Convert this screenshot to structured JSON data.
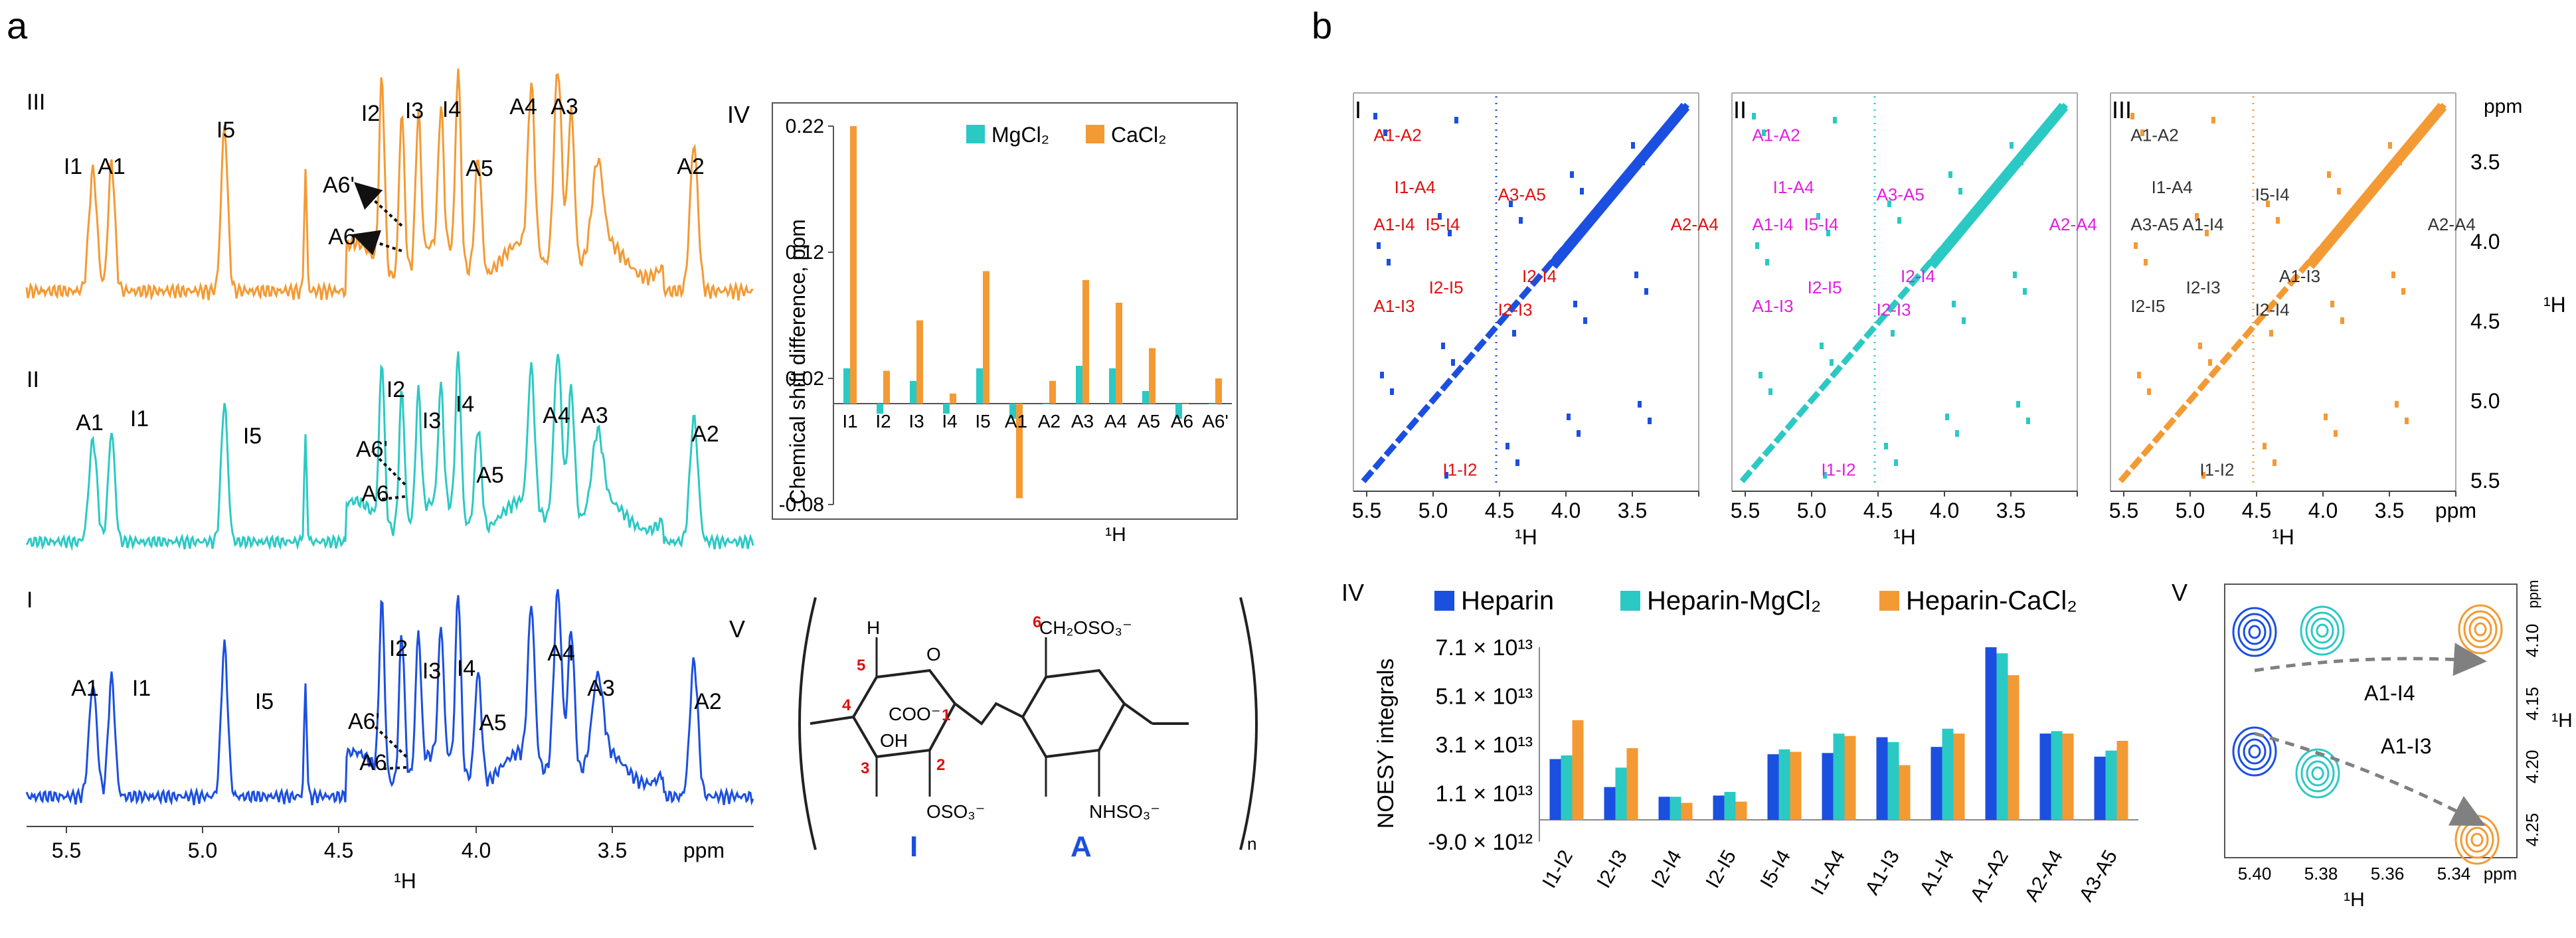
{
  "colors": {
    "orange": "#F39A34",
    "cyan": "#2BC9C4",
    "blue": "#1B4FE0",
    "magenta": "#E020E0",
    "red": "#E01010",
    "dark": "#333333"
  },
  "panel_a": {
    "label": "a",
    "spectra_labels": [
      "III",
      "II",
      "I"
    ],
    "ppm_ticks": [
      "5.5",
      "5.0",
      "4.5",
      "4.0",
      "3.5",
      "ppm"
    ],
    "axis_label": "¹H",
    "peaks": {
      "III": [
        "I1",
        "A1",
        "I5",
        "I2",
        "I3",
        "I4",
        "A4",
        "A3",
        "A5",
        "A2",
        "A6'",
        "A6"
      ],
      "II": [
        "A1",
        "I1",
        "I5",
        "I2",
        "I3",
        "I4",
        "A4",
        "A3",
        "A5",
        "A2",
        "A6'",
        "A6"
      ],
      "I": [
        "A1",
        "I1",
        "I5",
        "I2",
        "I3",
        "I4",
        "A4",
        "A3",
        "A5",
        "A2",
        "A6'",
        "A6"
      ]
    }
  },
  "panel_a_IV": {
    "label": "IV",
    "legend": [
      "MgCl₂",
      "CaCl₂"
    ],
    "yticks": [
      "0.22",
      "0.12",
      "0.02",
      "-0.08"
    ],
    "xlabel": "¹H",
    "ylabel": "Chemical shift difference, ppm"
  },
  "panel_a_V": {
    "label": "V",
    "ring_labels": [
      "I",
      "A"
    ],
    "subscript": "n",
    "groups": [
      "H",
      "COO⁻",
      "OH",
      "OSO₃⁻",
      "CH₂OSO₃⁻",
      "NHSO₃⁻",
      "O"
    ],
    "positions": [
      "1",
      "2",
      "3",
      "4",
      "5",
      "6"
    ]
  },
  "panel_b": {
    "label": "b",
    "noesy_labels": [
      "I",
      "II",
      "III"
    ],
    "axis_ticks_x": [
      "5.5",
      "5.0",
      "4.5",
      "4.0",
      "3.5",
      "ppm"
    ],
    "axis_ticks_y": [
      "3.5",
      "4.0",
      "4.5",
      "5.0",
      "5.5",
      "ppm"
    ],
    "axis_label": "¹H",
    "crosspeaks_I": [
      "A1-A2",
      "I1-A4",
      "A1-I4",
      "I5-I4",
      "A3-A5",
      "A2-A4",
      "I2-I4",
      "A1-I3",
      "I2-I5",
      "I2-I3",
      "I1-I2"
    ],
    "crosspeaks_II": [
      "A1-A2",
      "I1-A4",
      "A1-I4",
      "I5-I4",
      "A3-A5",
      "A2-A4",
      "I2-I4",
      "A1-I3",
      "I2-I5",
      "I2-I3",
      "I1-I2"
    ],
    "crosspeaks_III": [
      "A1-A2",
      "I1-A4",
      "A3-A5",
      "A1-I4",
      "I5-I4",
      "A2-A4",
      "A1-I3",
      "I2-I5",
      "I2-I3",
      "I2-I4",
      "I1-I2"
    ]
  },
  "panel_b_IV": {
    "label": "IV",
    "ylabel": "NOESY integrals",
    "yticks": [
      "7.1 × 10¹³",
      "5.1 × 10¹³",
      "3.1 × 10¹³",
      "1.1 × 10¹³",
      "-9.0 × 10¹²"
    ]
  },
  "panel_b_V": {
    "label": "V",
    "xticks": [
      "5.40",
      "5.38",
      "5.36",
      "5.34",
      "ppm"
    ],
    "yticks": [
      "4.10",
      "4.15",
      "4.20",
      "4.25"
    ],
    "yunit": "ppm",
    "axis_label": "¹H",
    "annotations": [
      "A1-I4",
      "A1-I3"
    ]
  },
  "chart_data": [
    {
      "type": "bar",
      "title": "Chemical shift difference",
      "xlabel": "¹H",
      "ylabel": "Chemical shift difference, ppm",
      "ylim": [
        -0.08,
        0.22
      ],
      "categories": [
        "I1",
        "I2",
        "I3",
        "I4",
        "I5",
        "A1",
        "A2",
        "A3",
        "A4",
        "A5",
        "A6",
        "A6'"
      ],
      "series": [
        {
          "name": "MgCl₂",
          "color": "#2BC9C4",
          "values": [
            0.028,
            -0.008,
            0.018,
            -0.008,
            0.028,
            -0.012,
            0.0,
            0.03,
            0.028,
            0.01,
            -0.012,
            0.0
          ]
        },
        {
          "name": "CaCl₂",
          "color": "#F39A34",
          "values": [
            0.22,
            0.026,
            0.066,
            0.008,
            0.105,
            -0.075,
            0.018,
            0.098,
            0.08,
            0.044,
            0.0,
            0.02
          ]
        }
      ]
    },
    {
      "type": "bar",
      "title": "NOESY integrals",
      "ylabel": "NOESY integrals",
      "ylim": [
        -9000000000000.0,
        71000000000000.0
      ],
      "categories": [
        "I1-I2",
        "I2-I3",
        "I2-I4",
        "I2-I5",
        "I5-I4",
        "I1-A4",
        "A1-I3",
        "A1-I4",
        "A1-A2",
        "A2-A4",
        "A3-A5"
      ],
      "series": [
        {
          "name": "Heparin",
          "color": "#1B4FE0",
          "values": [
            25000000000000.0,
            13500000000000.0,
            9500000000000.0,
            10000000000000.0,
            27000000000000.0,
            27500000000000.0,
            34000000000000.0,
            30000000000000.0,
            71000000000000.0,
            35500000000000.0,
            26000000000000.0
          ]
        },
        {
          "name": "Heparin-MgCl₂",
          "color": "#2BC9C4",
          "values": [
            26500000000000.0,
            21500000000000.0,
            9500000000000.0,
            11500000000000.0,
            29000000000000.0,
            35500000000000.0,
            32000000000000.0,
            37500000000000.0,
            68500000000000.0,
            36500000000000.0,
            28500000000000.0
          ]
        },
        {
          "name": "Heparin-CaCl₂",
          "color": "#F39A34",
          "values": [
            41000000000000.0,
            29500000000000.0,
            7000000000000.0,
            7500000000000.0,
            28000000000000.0,
            34500000000000.0,
            22500000000000.0,
            35500000000000.0,
            59500000000000.0,
            35500000000000.0,
            32500000000000.0
          ]
        }
      ]
    }
  ]
}
